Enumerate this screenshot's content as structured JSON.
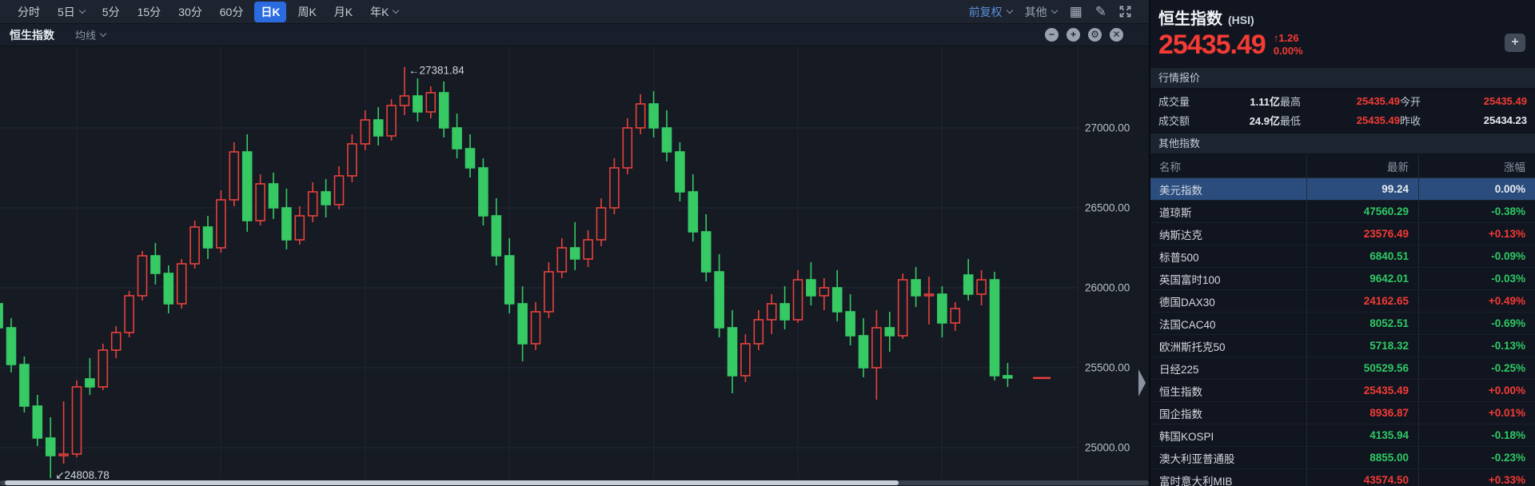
{
  "toolbar": {
    "periods": [
      {
        "label": "分时",
        "caret": false,
        "active": false
      },
      {
        "label": "5日",
        "caret": true,
        "active": false
      },
      {
        "label": "5分",
        "caret": false,
        "active": false
      },
      {
        "label": "15分",
        "caret": false,
        "active": false
      },
      {
        "label": "30分",
        "caret": false,
        "active": false
      },
      {
        "label": "60分",
        "caret": false,
        "active": false
      },
      {
        "label": "日K",
        "caret": false,
        "active": true
      },
      {
        "label": "周K",
        "caret": false,
        "active": false
      },
      {
        "label": "月K",
        "caret": false,
        "active": false
      },
      {
        "label": "年K",
        "caret": true,
        "active": false
      }
    ],
    "adjust_label": "前复权",
    "other_label": "其他",
    "icons": {
      "minus": "−",
      "plus": "+",
      "gear": "⚙",
      "close": "✕",
      "grid": "▦",
      "brush": "✎"
    }
  },
  "chart_header": {
    "symbol_label": "恒生指数",
    "ma_label": "均线"
  },
  "chart_data": {
    "type": "candlestick",
    "symbol": "恒生指数",
    "period": "日K",
    "y_axis": {
      "ticks": [
        "27000.00",
        "26500.00",
        "26000.00",
        "25500.00",
        "25000.00"
      ],
      "values": [
        27000,
        26500,
        26000,
        25500,
        25000
      ]
    },
    "ylim": [
      24750,
      27520
    ],
    "grid": true,
    "annotations": {
      "high_label": "27381.84",
      "high_value": 27381.84,
      "low_label": "24808.78",
      "low_value": 24808.78
    },
    "last_price": 25435.49,
    "up_color": "#e8413c",
    "down_color": "#36c964",
    "candles_ohlc": [
      [
        25900,
        25950,
        25640,
        25750
      ],
      [
        25750,
        25810,
        25470,
        25520
      ],
      [
        25520,
        25570,
        25220,
        25260
      ],
      [
        25260,
        25330,
        25010,
        25060
      ],
      [
        25060,
        25190,
        24808.78,
        24950
      ],
      [
        24950,
        25290,
        24900,
        24960
      ],
      [
        24960,
        25420,
        24940,
        25380
      ],
      [
        25430,
        25560,
        25330,
        25380
      ],
      [
        25380,
        25650,
        25360,
        25610
      ],
      [
        25610,
        25760,
        25560,
        25720
      ],
      [
        25720,
        25980,
        25690,
        25950
      ],
      [
        25950,
        26230,
        25920,
        26200
      ],
      [
        26200,
        26280,
        26020,
        26090
      ],
      [
        26090,
        26140,
        25840,
        25900
      ],
      [
        25900,
        26180,
        25870,
        26150
      ],
      [
        26150,
        26420,
        26120,
        26380
      ],
      [
        26380,
        26450,
        26180,
        26250
      ],
      [
        26250,
        26610,
        26220,
        26550
      ],
      [
        26550,
        26910,
        26510,
        26850
      ],
      [
        26850,
        26960,
        26350,
        26420
      ],
      [
        26420,
        26710,
        26390,
        26650
      ],
      [
        26650,
        26720,
        26430,
        26500
      ],
      [
        26500,
        26620,
        26240,
        26300
      ],
      [
        26300,
        26510,
        26270,
        26450
      ],
      [
        26450,
        26660,
        26410,
        26600
      ],
      [
        26600,
        26680,
        26440,
        26520
      ],
      [
        26520,
        26760,
        26490,
        26700
      ],
      [
        26700,
        26960,
        26660,
        26900
      ],
      [
        26900,
        27110,
        26860,
        27050
      ],
      [
        27050,
        27130,
        26890,
        26950
      ],
      [
        26950,
        27180,
        26920,
        27140
      ],
      [
        27140,
        27381.84,
        27080,
        27200
      ],
      [
        27200,
        27310,
        27040,
        27100
      ],
      [
        27100,
        27260,
        27060,
        27220
      ],
      [
        27220,
        27290,
        26940,
        27000
      ],
      [
        27000,
        27090,
        26810,
        26870
      ],
      [
        26870,
        26960,
        26690,
        26750
      ],
      [
        26750,
        26810,
        26390,
        26450
      ],
      [
        26450,
        26560,
        26140,
        26200
      ],
      [
        26200,
        26310,
        25840,
        25900
      ],
      [
        25900,
        26010,
        25540,
        25650
      ],
      [
        25650,
        25910,
        25610,
        25850
      ],
      [
        25850,
        26160,
        25810,
        26100
      ],
      [
        26100,
        26310,
        26060,
        26250
      ],
      [
        26250,
        26410,
        26110,
        26180
      ],
      [
        26180,
        26360,
        26130,
        26300
      ],
      [
        26300,
        26560,
        26260,
        26500
      ],
      [
        26500,
        26810,
        26460,
        26750
      ],
      [
        26750,
        27060,
        26710,
        27000
      ],
      [
        27000,
        27210,
        26960,
        27150
      ],
      [
        27150,
        27230,
        26940,
        27000
      ],
      [
        27000,
        27110,
        26790,
        26850
      ],
      [
        26850,
        26910,
        26540,
        26600
      ],
      [
        26600,
        26710,
        26290,
        26350
      ],
      [
        26350,
        26460,
        26040,
        26100
      ],
      [
        26100,
        26210,
        25690,
        25750
      ],
      [
        25750,
        25860,
        25340,
        25450
      ],
      [
        25450,
        25710,
        25410,
        25650
      ],
      [
        25650,
        25860,
        25610,
        25800
      ],
      [
        25800,
        25960,
        25710,
        25900
      ],
      [
        25900,
        26010,
        25740,
        25800
      ],
      [
        25800,
        26110,
        25780,
        26050
      ],
      [
        26050,
        26160,
        25890,
        25950
      ],
      [
        25950,
        26060,
        25860,
        26000
      ],
      [
        26000,
        26110,
        25790,
        25850
      ],
      [
        25850,
        25960,
        25640,
        25700
      ],
      [
        25700,
        25810,
        25440,
        25500
      ],
      [
        25500,
        25860,
        25300,
        25750
      ],
      [
        25750,
        25850,
        25600,
        25700
      ],
      [
        25700,
        26090,
        25680,
        26050
      ],
      [
        26050,
        26130,
        25880,
        25950
      ],
      [
        25950,
        26070,
        25770,
        25960
      ],
      [
        25960,
        26010,
        25690,
        25780
      ],
      [
        25780,
        25910,
        25730,
        25870
      ],
      [
        26080,
        26180,
        25920,
        25960
      ],
      [
        25960,
        26110,
        25890,
        26050
      ],
      [
        26050,
        26100,
        25420,
        25450
      ],
      [
        25450,
        25530,
        25380,
        25435.49
      ]
    ]
  },
  "panel": {
    "title": "恒生指数",
    "symbol": "(HSI)",
    "price": "25435.49",
    "change_arrow": "↑",
    "change": "1.26",
    "change_pct": "0.00%",
    "add_label": "+",
    "quote_section_label": "行情报价",
    "indices_section_label": "其他指数",
    "quote": [
      {
        "label": "成交量",
        "value": "1.11亿",
        "dir": "flat"
      },
      {
        "label": "最高",
        "value": "25435.49",
        "dir": "up"
      },
      {
        "label": "今开",
        "value": "25435.49",
        "dir": "up"
      },
      {
        "label": "成交额",
        "value": "24.9亿",
        "dir": "flat"
      },
      {
        "label": "最低",
        "value": "25435.49",
        "dir": "up"
      },
      {
        "label": "昨收",
        "value": "25434.23",
        "dir": "flat"
      }
    ],
    "table_headers": [
      "名称",
      "最新",
      "涨幅"
    ],
    "indices": [
      {
        "name": "美元指数",
        "value": "99.24",
        "pct": "0.00%",
        "dir": "flat",
        "highlighted": true
      },
      {
        "name": "道琼斯",
        "value": "47560.29",
        "pct": "-0.38%",
        "dir": "down",
        "highlighted": false
      },
      {
        "name": "纳斯达克",
        "value": "23576.49",
        "pct": "+0.13%",
        "dir": "up",
        "highlighted": false
      },
      {
        "name": "标普500",
        "value": "6840.51",
        "pct": "-0.09%",
        "dir": "down",
        "highlighted": false
      },
      {
        "name": "英国富时100",
        "value": "9642.01",
        "pct": "-0.03%",
        "dir": "down",
        "highlighted": false
      },
      {
        "name": "德国DAX30",
        "value": "24162.65",
        "pct": "+0.49%",
        "dir": "up",
        "highlighted": false
      },
      {
        "name": "法国CAC40",
        "value": "8052.51",
        "pct": "-0.69%",
        "dir": "down",
        "highlighted": false
      },
      {
        "name": "欧洲斯托克50",
        "value": "5718.32",
        "pct": "-0.13%",
        "dir": "down",
        "highlighted": false
      },
      {
        "name": "日经225",
        "value": "50529.56",
        "pct": "-0.25%",
        "dir": "down",
        "highlighted": false
      },
      {
        "name": "恒生指数",
        "value": "25435.49",
        "pct": "+0.00%",
        "dir": "up",
        "highlighted": false
      },
      {
        "name": "国企指数",
        "value": "8936.87",
        "pct": "+0.01%",
        "dir": "up",
        "highlighted": false
      },
      {
        "name": "韩国KOSPI",
        "value": "4135.94",
        "pct": "-0.18%",
        "dir": "down",
        "highlighted": false
      },
      {
        "name": "澳大利亚普通股",
        "value": "8855.00",
        "pct": "-0.23%",
        "dir": "down",
        "highlighted": false
      },
      {
        "name": "富时意大利MIB",
        "value": "43574.50",
        "pct": "+0.33%",
        "dir": "up",
        "highlighted": false
      }
    ]
  }
}
